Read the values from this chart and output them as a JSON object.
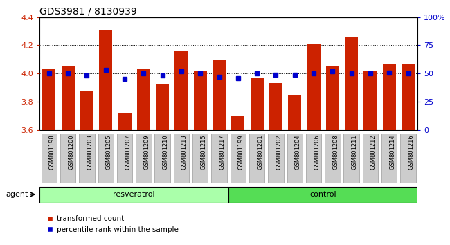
{
  "title": "GDS3981 / 8130939",
  "samples": [
    "GSM801198",
    "GSM801200",
    "GSM801203",
    "GSM801205",
    "GSM801207",
    "GSM801209",
    "GSM801210",
    "GSM801213",
    "GSM801215",
    "GSM801217",
    "GSM801199",
    "GSM801201",
    "GSM801202",
    "GSM801204",
    "GSM801206",
    "GSM801208",
    "GSM801211",
    "GSM801212",
    "GSM801214",
    "GSM801216"
  ],
  "bar_values": [
    4.03,
    4.05,
    3.88,
    4.31,
    3.72,
    4.03,
    3.92,
    4.16,
    4.02,
    4.1,
    3.7,
    3.97,
    3.93,
    3.85,
    4.21,
    4.05,
    4.26,
    4.02,
    4.07,
    4.07
  ],
  "percentile_values": [
    50,
    50,
    48,
    53,
    45,
    50,
    48,
    52,
    50,
    47,
    46,
    50,
    49,
    49,
    50,
    52,
    50,
    50,
    51,
    50
  ],
  "resveratrol_count": 10,
  "control_count": 10,
  "ylim_left": [
    3.6,
    4.4
  ],
  "ylim_right": [
    0,
    100
  ],
  "yticks_left": [
    3.6,
    3.8,
    4.0,
    4.2,
    4.4
  ],
  "yticks_right": [
    0,
    25,
    50,
    75,
    100
  ],
  "ytick_labels_right": [
    "0",
    "25",
    "50",
    "75",
    "100%"
  ],
  "bar_color": "#cc2200",
  "dot_color": "#0000cc",
  "resveratrol_color": "#aaffaa",
  "control_color": "#55dd55",
  "agent_label": "agent",
  "resveratrol_label": "resveratrol",
  "control_label": "control",
  "legend_bar_label": "transformed count",
  "legend_dot_label": "percentile rank within the sample",
  "grid_color": "#000000",
  "tick_label_color_left": "#cc2200",
  "tick_label_color_right": "#0000cc",
  "background_color": "#ffffff",
  "plot_bg_color": "#ffffff",
  "xtick_box_color": "#cccccc",
  "xtick_box_edge": "#999999"
}
